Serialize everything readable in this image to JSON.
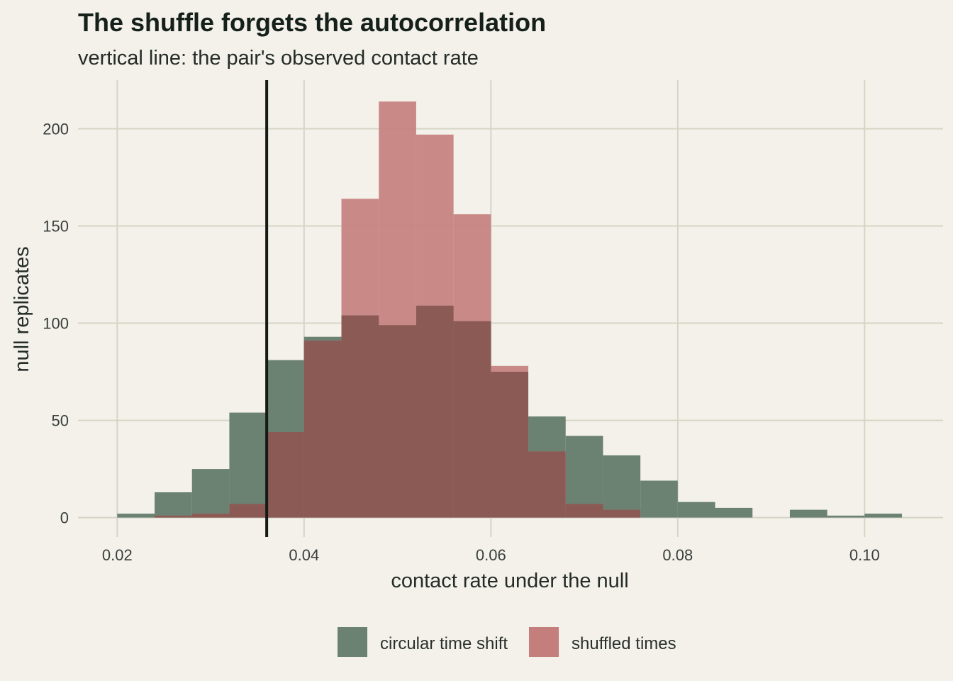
{
  "chart_data": {
    "type": "bar",
    "title": "The shuffle forgets the autocorrelation",
    "subtitle": "vertical line: the pair's observed contact rate",
    "xlabel": "contact rate under the null",
    "ylabel": "null replicates",
    "xlim": [
      0.0158,
      0.1084
    ],
    "ylim": [
      -10,
      225
    ],
    "x_ticks": [
      0.02,
      0.04,
      0.06,
      0.08,
      0.1
    ],
    "x_tick_labels": [
      "0.02",
      "0.04",
      "0.06",
      "0.08",
      "0.10"
    ],
    "y_ticks": [
      0,
      50,
      100,
      150,
      200
    ],
    "y_tick_labels": [
      "0",
      "50",
      "100",
      "150",
      "200"
    ],
    "bin_width": 0.004,
    "bin_starts": [
      0.02,
      0.024,
      0.028,
      0.032,
      0.036,
      0.04,
      0.044,
      0.048,
      0.052,
      0.056,
      0.06,
      0.064,
      0.068,
      0.072,
      0.076,
      0.08,
      0.084,
      0.088,
      0.092,
      0.096,
      0.1
    ],
    "series": [
      {
        "name": "circular time shift",
        "color": "#6b8171",
        "values": [
          2,
          13,
          25,
          54,
          81,
          93,
          104,
          99,
          109,
          101,
          75,
          52,
          42,
          32,
          19,
          8,
          5,
          0,
          4,
          1,
          2
        ]
      },
      {
        "name": "shuffled times",
        "color": "#c47e7c",
        "values": [
          0,
          1,
          2,
          7,
          44,
          91,
          164,
          214,
          197,
          156,
          78,
          34,
          7,
          4,
          0,
          0,
          0,
          0,
          0,
          0,
          0
        ]
      }
    ],
    "observed_value": 0.036,
    "observed_line_color": "#151a17",
    "grid": true,
    "legend_position": "bottom"
  }
}
